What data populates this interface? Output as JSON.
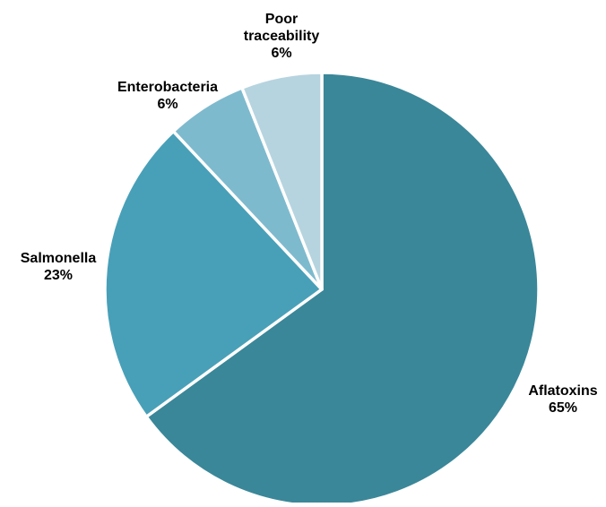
{
  "chart_data": {
    "type": "pie",
    "title": "",
    "slices": [
      {
        "label": [
          "Aflatoxins"
        ],
        "percent_label": "65%",
        "value": 65,
        "color": "#3a8799"
      },
      {
        "label": [
          "Salmonella"
        ],
        "percent_label": "23%",
        "value": 23,
        "color": "#48a0b8"
      },
      {
        "label": [
          "Enterobacteria"
        ],
        "percent_label": "6%",
        "value": 6,
        "color": "#7ebace"
      },
      {
        "label": [
          "Poor",
          "traceability"
        ],
        "percent_label": "6%",
        "value": 6,
        "color": "#b6d4df"
      }
    ],
    "slice_separator_color": "#ffffff",
    "legend": "none",
    "labels_position": "outside"
  }
}
